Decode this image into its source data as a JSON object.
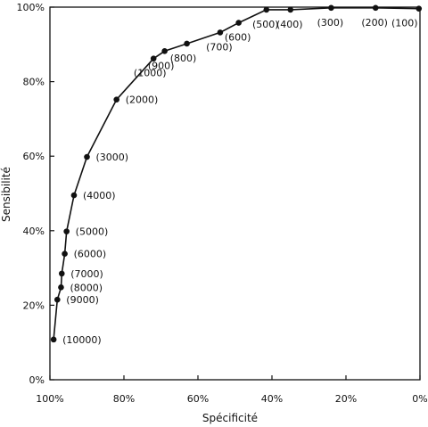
{
  "chart_data": {
    "type": "line",
    "title": "",
    "xlabel": "Spécificité",
    "ylabel": "Sensibilité",
    "x_reversed": true,
    "xlim": [
      100,
      0
    ],
    "ylim": [
      0,
      100
    ],
    "x_unit": "%",
    "y_unit": "%",
    "x_ticks": [
      "100%",
      "80%",
      "60%",
      "40%",
      "20%",
      "0%"
    ],
    "y_ticks": [
      "0%",
      "20%",
      "40%",
      "60%",
      "80%",
      "100%"
    ],
    "grid": false,
    "legend": "none",
    "marker": "filled-circle",
    "line_color": "#111111",
    "series": [
      {
        "points": [
          {
            "x": 99,
            "y": 10.8,
            "label": "(10000)"
          },
          {
            "x": 98,
            "y": 21.5,
            "label": "(9000)"
          },
          {
            "x": 97,
            "y": 24.8,
            "label": "(8000)"
          },
          {
            "x": 96.8,
            "y": 28.5,
            "label": "(7000)"
          },
          {
            "x": 96,
            "y": 33.8,
            "label": "(6000)"
          },
          {
            "x": 95.5,
            "y": 39.8,
            "label": "(5000)"
          },
          {
            "x": 93.5,
            "y": 49.5,
            "label": "(4000)"
          },
          {
            "x": 90,
            "y": 59.8,
            "label": "(3000)"
          },
          {
            "x": 82,
            "y": 75.2,
            "label": "(2000)"
          },
          {
            "x": 72,
            "y": 86.2,
            "label": "(1000)"
          },
          {
            "x": 69,
            "y": 88.2,
            "label": "(900)"
          },
          {
            "x": 63,
            "y": 90.2,
            "label": "(800)"
          },
          {
            "x": 54,
            "y": 93.2,
            "label": "(700)"
          },
          {
            "x": 49,
            "y": 95.8,
            "label": "(600)"
          },
          {
            "x": 41.5,
            "y": 99.3,
            "label": "(500)"
          },
          {
            "x": 35,
            "y": 99.3,
            "label": "(400)"
          },
          {
            "x": 24,
            "y": 99.8,
            "label": "(300)"
          },
          {
            "x": 12,
            "y": 99.8,
            "label": "(200)"
          },
          {
            "x": 0.3,
            "y": 99.6,
            "label": "(100)"
          }
        ]
      }
    ]
  }
}
